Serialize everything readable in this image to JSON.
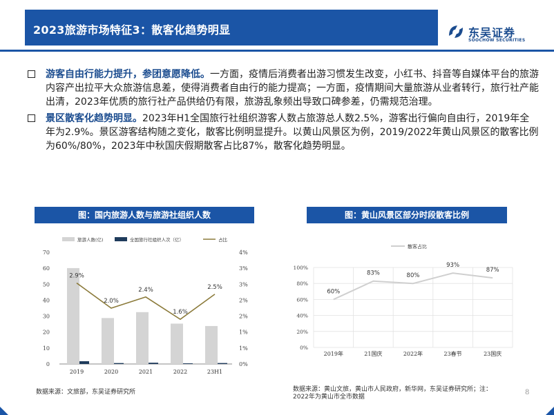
{
  "header": {
    "title": "2023旅游市场特征3：散客化趋势明显",
    "logo_cn": "东吴证券",
    "logo_en": "SOOCHOW SECURITIES",
    "brand_color": "#1b55a6"
  },
  "bullets": [
    {
      "strong": "游客自由行能力提升，参团意愿降低。",
      "text": "一方面，疫情后消费者出游习惯发生改变，小红书、抖音等自媒体平台的旅游内容产出拉平大众旅游信息差，使得消费者自由行的能力提高；一方面，疫情期间大量旅游从业者转行，旅行社产能出清，2023年优质的旅行社产品供给仍有限，旅游乱象频出导致口碑参差，仍需规范治理。"
    },
    {
      "strong": "景区散客化趋势明显。",
      "text": "2023年H1全国旅行社组织游客人数占旅游总人数2.5%，游客出行偏向自由行，2019年全年为2.9%。景区游客结构随之变化，散客比例明显提升。以黄山风景区为例，2019/2022年黄山风景区的散客比例为60%/80%，2023年中秋国庆假期散客占比87%，散客化趋势明显。"
    }
  ],
  "chart_titles": {
    "left": "图：国内旅游人数与旅游社组织人数",
    "right": "图：黄山风景区部分时段散客比例"
  },
  "sources": {
    "left": "数据来源：文旅部，东吴证券研究所",
    "right_line1": "数据来源：黄山文旅，黄山市人民政府，新华网，东吴证券研究所；注：",
    "right_line2": "2022年为黄山市全市数据"
  },
  "page_number": "8",
  "chart_data": [
    {
      "type": "bar",
      "categories": [
        "2019",
        "2020",
        "2021",
        "2022",
        "23H1"
      ],
      "series": [
        {
          "name": "旅游人数(亿)",
          "kind": "bar",
          "axis": "left",
          "color": "#d4d4d4",
          "values": [
            60.1,
            28.8,
            32.5,
            25.3,
            23.8
          ]
        },
        {
          "name": "全国旅行社组织人次（亿）",
          "kind": "bar",
          "axis": "left",
          "color": "#1f3b5c",
          "values": [
            1.74,
            0.58,
            0.79,
            0.41,
            0.6
          ]
        },
        {
          "name": "占比",
          "kind": "line",
          "axis": "right",
          "color": "#8b7a3a",
          "values": [
            0.029,
            0.02,
            0.024,
            0.016,
            0.025
          ],
          "labels": [
            "2.9%",
            "2.0%",
            "2.4%",
            "1.6%",
            "2.5%"
          ]
        }
      ],
      "ylim_left": [
        0,
        70
      ],
      "yticks_left": [
        "0",
        "10",
        "20",
        "30",
        "40",
        "50",
        "60",
        "70"
      ],
      "ylim_right": [
        0,
        0.04
      ],
      "yticks_right": [
        "0%",
        "1%",
        "1%",
        "2%",
        "2%",
        "3%",
        "3%",
        "4%"
      ],
      "legend_position": "top"
    },
    {
      "type": "line",
      "categories": [
        "2019年",
        "21国庆",
        "2022年",
        "23春节",
        "23国庆"
      ],
      "series": [
        {
          "name": "散客占比",
          "color": "#cfcfcf",
          "values": [
            0.6,
            0.83,
            0.8,
            0.93,
            0.87
          ],
          "labels": [
            "60%",
            "83%",
            "80%",
            "93%",
            "87%"
          ]
        }
      ],
      "ylim": [
        0,
        1.0
      ],
      "yticks": [
        "0%",
        "20%",
        "40%",
        "60%",
        "80%",
        "100%"
      ],
      "grid": true,
      "legend_position": "top"
    }
  ]
}
